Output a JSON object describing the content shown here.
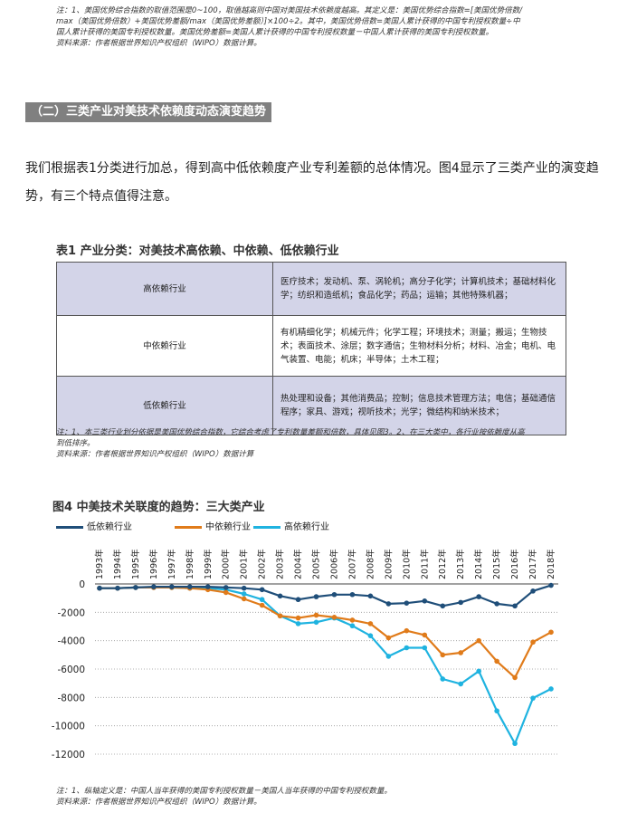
{
  "top_note": {
    "line1": "注：1、美国优势综合指数的取值范围是0~100，取值越高则中国对美国技术依赖度越高。其定义是：美国优势综合指数=[美国优势倍数/",
    "line2": "max（美国优势倍数）+美国优势差额/max（美国优势差额）]×100÷2。其中，美国优势倍数=美国人累计获得的中国专利授权数量÷中",
    "line3": "国人累计获得的美国专利授权数量。美国优势差额=美国人累计获得的中国专利授权数量－中国人累计获得的美国专利授权数量。",
    "line4": "资料来源：作者根据世界知识产权组织（WIPO）数据计算。"
  },
  "section_heading": "（二）三类产业对美技术依赖度动态演变趋势",
  "intro": "我们根据表1分类进行加总，得到高中低依赖度产业专利差额的总体情况。图4显示了三类产业的演变趋势，有三个特点值得注意。",
  "table": {
    "title": "表1  产业分类：对美技术高依赖、中依赖、低依赖行业",
    "rows": [
      {
        "category": "高依赖行业",
        "items": "医疗技术；发动机、泵、涡轮机；高分子化学；计算机技术；基础材料化学；纺织和造纸机；食品化学；药品；运输；其他特殊机器；"
      },
      {
        "category": "中依赖行业",
        "items": "有机精细化学；机械元件；化学工程；环境技术；测量；搬运；生物技术；表面技术、涂层；数字通信；生物材料分析；材料、冶金；电机、电气装置、电能；机床；半导体；土木工程；"
      },
      {
        "category": "低依赖行业",
        "items": "热处理和设备；其他消费品；控制；信息技术管理方法；电信；基础通信程序；家具、游戏；视听技术；光学；微结构和纳米技术；"
      }
    ],
    "note1": "注：1、本三类行业划分依据是美国优势综合指数，它综合考虑了专利数量差额和倍数，具体见图3。2、在三大类中，各行业按依赖度从高",
    "note2": "到低排序。",
    "source": "资料来源：作者根据世界知识产权组织（WIPO）数据计算"
  },
  "figure": {
    "title": "图4  中美技术关联度的趋势：三大类产业",
    "note1": "注：1、纵轴定义是：中国人当年获得的美国专利授权数量－美国人当年获得的中国专利授权数量。",
    "source": "资料来源：作者根据世界知识产权组织（WIPO）数据计算。"
  },
  "chart_data": {
    "type": "line",
    "title": "图4  中美技术关联度的趋势：三大类产业",
    "x": [
      "1993年",
      "1994年",
      "1995年",
      "1996年",
      "1997年",
      "1998年",
      "1999年",
      "2000年",
      "2001年",
      "2002年",
      "2003年",
      "2004年",
      "2005年",
      "2006年",
      "2007年",
      "2008年",
      "2009年",
      "2010年",
      "2011年",
      "2012年",
      "2013年",
      "2014年",
      "2015年",
      "2016年",
      "2017年",
      "2018年"
    ],
    "ylim": [
      -12000,
      0
    ],
    "yticks": [
      0,
      -2000,
      -4000,
      -6000,
      -8000,
      -10000,
      -12000
    ],
    "ytick_labels": [
      "0",
      "-2000",
      "-4000",
      "-6000",
      "-8000",
      "-10000",
      "-12000"
    ],
    "legend_position": "top-left",
    "grid": "dotted-horizontal",
    "series": [
      {
        "name": "低依赖行业",
        "color": "#1f4e79",
        "values": [
          -300,
          -300,
          -250,
          -200,
          -200,
          -200,
          -200,
          -250,
          -300,
          -400,
          -850,
          -1100,
          -900,
          -750,
          -750,
          -850,
          -1400,
          -1350,
          -1200,
          -1550,
          -1300,
          -900,
          -1400,
          -1550,
          -500,
          -100
        ]
      },
      {
        "name": "中依赖行业",
        "color": "#e07b1a",
        "values": [
          -300,
          -300,
          -250,
          -250,
          -250,
          -300,
          -400,
          -600,
          -1050,
          -1500,
          -2250,
          -2400,
          -2200,
          -2350,
          -2550,
          -2800,
          -3800,
          -3300,
          -3600,
          -5000,
          -4850,
          -4000,
          -5450,
          -6600,
          -4100,
          -3400
        ]
      },
      {
        "name": "高依赖行业",
        "color": "#1fb3e0",
        "values": [
          -300,
          -300,
          -250,
          -250,
          -250,
          -300,
          -300,
          -400,
          -700,
          -1100,
          -2250,
          -2800,
          -2700,
          -2400,
          -2950,
          -3650,
          -5100,
          -4500,
          -4500,
          -6700,
          -7050,
          -6150,
          -8950,
          -11250,
          -8050,
          -7400
        ]
      }
    ]
  }
}
